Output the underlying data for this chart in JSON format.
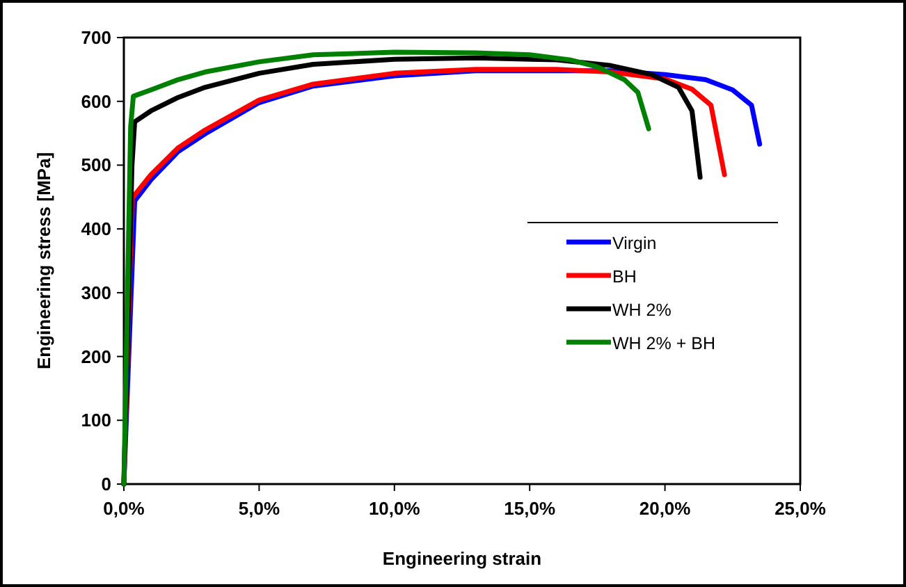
{
  "chart_data": {
    "type": "line",
    "xlabel": "Engineering strain",
    "ylabel": "Engineering stress [MPa]",
    "xlim": [
      0,
      25
    ],
    "ylim": [
      0,
      700
    ],
    "xticks": [
      {
        "value": 0,
        "label": "0,0%"
      },
      {
        "value": 5,
        "label": "5,0%"
      },
      {
        "value": 10,
        "label": "10,0%"
      },
      {
        "value": 15,
        "label": "15,0%"
      },
      {
        "value": 20,
        "label": "20,0%"
      },
      {
        "value": 25,
        "label": "25,0%"
      }
    ],
    "yticks": [
      0,
      100,
      200,
      300,
      400,
      500,
      600,
      700
    ],
    "grid": false,
    "legend": "right",
    "marker": "none",
    "line_style": "solid",
    "series": [
      {
        "name": "Virgin",
        "color": "#0000ff",
        "x": [
          0,
          0.4,
          1,
          2,
          3,
          5,
          7,
          10,
          13,
          18,
          20,
          21.5,
          22.5,
          23.2,
          23.5
        ],
        "values": [
          0,
          444,
          477,
          521,
          549,
          598,
          624,
          640,
          648,
          648,
          642,
          634,
          618,
          594,
          533
        ]
      },
      {
        "name": "BH",
        "color": "#ff0000",
        "x": [
          0,
          0.3,
          1,
          2,
          3,
          5,
          7,
          10,
          13,
          16,
          18,
          20,
          21,
          21.7,
          22.2
        ],
        "values": [
          0,
          448,
          485,
          527,
          555,
          602,
          627,
          644,
          650,
          650,
          646,
          635,
          619,
          594,
          485
        ]
      },
      {
        "name": "WH 2%",
        "color": "#000000",
        "x": [
          0,
          0.3,
          0.4,
          1,
          2,
          3,
          5,
          7,
          10,
          13,
          16,
          18,
          19.5,
          20.5,
          21,
          21.3
        ],
        "values": [
          0,
          500,
          568,
          585,
          606,
          622,
          644,
          658,
          666,
          668,
          665,
          656,
          642,
          622,
          585,
          481
        ]
      },
      {
        "name": "WH 2% + BH",
        "color": "#008000",
        "x": [
          0,
          0.25,
          0.35,
          1,
          2,
          3,
          5,
          7,
          10,
          13,
          15,
          16.5,
          17.5,
          18.5,
          19,
          19.4
        ],
        "values": [
          0,
          560,
          608,
          618,
          634,
          646,
          662,
          673,
          677,
          676,
          673,
          665,
          654,
          634,
          614,
          557
        ]
      }
    ]
  }
}
